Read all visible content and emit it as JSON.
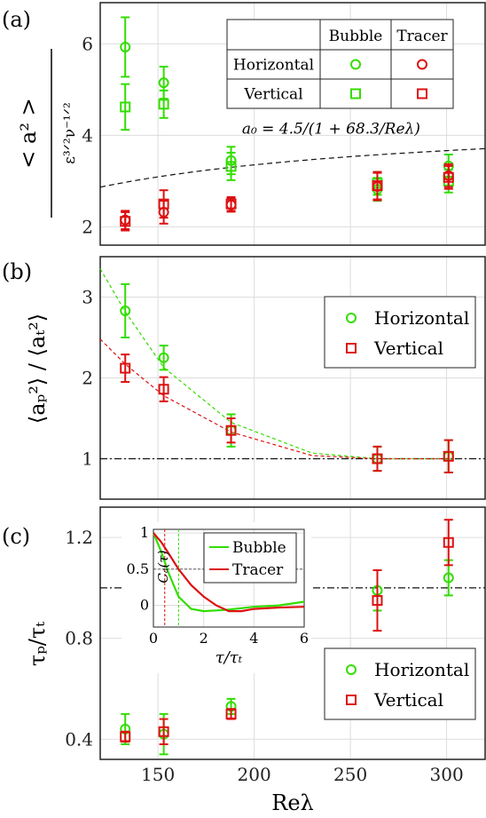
{
  "colors": {
    "bubble": "#33dd00",
    "tracer": "#dd1111",
    "grid": "#dddddd",
    "ref": "#111111"
  },
  "xlabel": "Reλ",
  "xticks": [
    150,
    200,
    250,
    300
  ],
  "chart_data": [
    {
      "panel": "(a)",
      "type": "scatter",
      "xlim": [
        120,
        320
      ],
      "ylim": [
        1.6,
        6.9
      ],
      "yticks": [
        2,
        4,
        6
      ],
      "ylabel_num": "< a² >",
      "ylabel_den": "ε³ᐟ²ν⁻¹ᐟ²",
      "legend_table": {
        "cols": [
          "Bubble",
          "Tracer"
        ],
        "rows": [
          "Horizontal",
          "Vertical"
        ]
      },
      "fit_label": "a₀ = 4.5/(1 + 68.3/Reλ)",
      "fit": {
        "formula": "4.5/(1+68.3/x)",
        "style": "dashed"
      },
      "series": [
        {
          "name": "Bubble Horizontal",
          "marker": "circle",
          "color": "bubble",
          "x": [
            133,
            153,
            188,
            264,
            301
          ],
          "y": [
            5.93,
            5.15,
            3.45,
            2.82,
            3.33
          ],
          "err": [
            0.65,
            0.35,
            0.3,
            0.25,
            0.25
          ]
        },
        {
          "name": "Bubble Vertical",
          "marker": "square",
          "color": "bubble",
          "x": [
            133,
            153,
            188,
            264,
            301
          ],
          "y": [
            4.62,
            4.68,
            3.32,
            2.95,
            3.0
          ],
          "err": [
            0.5,
            0.3,
            0.3,
            0.25,
            0.25
          ]
        },
        {
          "name": "Tracer Horizontal",
          "marker": "circle",
          "color": "tracer",
          "x": [
            133,
            153,
            188,
            264,
            301
          ],
          "y": [
            2.15,
            2.32,
            2.48,
            2.88,
            3.12
          ],
          "err": [
            0.2,
            0.25,
            0.15,
            0.3,
            0.25
          ]
        },
        {
          "name": "Tracer Vertical",
          "marker": "square",
          "color": "tracer",
          "x": [
            133,
            153,
            188,
            264,
            301
          ],
          "y": [
            2.12,
            2.5,
            2.5,
            2.9,
            3.08
          ],
          "err": [
            0.2,
            0.3,
            0.15,
            0.3,
            0.25
          ]
        }
      ]
    },
    {
      "panel": "(b)",
      "type": "scatter",
      "xlim": [
        120,
        320
      ],
      "ylim": [
        0.5,
        3.5
      ],
      "yticks": [
        1,
        2,
        3
      ],
      "ylabel": "⟨aₚ²⟩ / ⟨aₜ²⟩",
      "legend": [
        "Horizontal",
        "Vertical"
      ],
      "refline": 1,
      "series": [
        {
          "name": "Horizontal",
          "marker": "circle",
          "color": "bubble",
          "x": [
            133,
            153,
            188,
            264,
            301
          ],
          "y": [
            2.83,
            2.25,
            1.35,
            1.0,
            1.03
          ],
          "err": [
            0.33,
            0.15,
            0.2,
            0.15,
            0.2
          ]
        },
        {
          "name": "Vertical",
          "marker": "square",
          "color": "tracer",
          "x": [
            133,
            153,
            188,
            264,
            301
          ],
          "y": [
            2.12,
            1.86,
            1.35,
            1.0,
            1.03
          ],
          "err": [
            0.17,
            0.15,
            0.15,
            0.15,
            0.2
          ]
        }
      ],
      "fits": [
        {
          "color": "bubble",
          "x": [
            120,
            133,
            153,
            188,
            230,
            264,
            301
          ],
          "y": [
            3.35,
            2.82,
            2.13,
            1.45,
            1.07,
            1.0,
            1.0
          ]
        },
        {
          "color": "tracer",
          "x": [
            120,
            133,
            153,
            188,
            230,
            264,
            301
          ],
          "y": [
            2.48,
            2.17,
            1.78,
            1.33,
            1.04,
            1.0,
            1.0
          ]
        }
      ]
    },
    {
      "panel": "(c)",
      "type": "scatter",
      "xlim": [
        120,
        320
      ],
      "ylim": [
        0.32,
        1.32
      ],
      "yticks": [
        0.4,
        0.8,
        1.2
      ],
      "ylabel": "τₚ/τₜ",
      "legend": [
        "Horizontal",
        "Vertical"
      ],
      "refline": 1,
      "series": [
        {
          "name": "Horizontal",
          "marker": "circle",
          "color": "bubble",
          "x": [
            133,
            153,
            188,
            264,
            301
          ],
          "y": [
            0.44,
            0.42,
            0.53,
            0.99,
            1.04
          ],
          "err": [
            0.06,
            0.08,
            0.03,
            0.08,
            0.07
          ]
        },
        {
          "name": "Vertical",
          "marker": "square",
          "color": "tracer",
          "x": [
            133,
            153,
            188,
            264,
            301
          ],
          "y": [
            0.41,
            0.43,
            0.5,
            0.95,
            1.18
          ],
          "err": [
            0.02,
            0.05,
            0.02,
            0.12,
            0.09
          ]
        }
      ],
      "inset": {
        "type": "line",
        "xlim": [
          0,
          6
        ],
        "ylim": [
          -0.3,
          1.05
        ],
        "xticks": [
          0,
          2,
          4,
          6
        ],
        "yticks": [
          0,
          0.5,
          1
        ],
        "xlabel": "τ/τₜ",
        "ylabel": "Cₐ(τ)",
        "hline": 0.5,
        "vlines": [
          {
            "x": 0.45,
            "color": "tracer"
          },
          {
            "x": 1.0,
            "color": "bubble"
          }
        ],
        "series": [
          {
            "name": "Bubble",
            "color": "bubble",
            "x": [
              0,
              0.3,
              0.6,
              1.0,
              1.5,
              2.0,
              2.5,
              3.0,
              4.0,
              5.0,
              6.0
            ],
            "y": [
              1.0,
              0.75,
              0.45,
              0.12,
              -0.05,
              -0.08,
              -0.07,
              -0.06,
              -0.02,
              0.0,
              0.05
            ]
          },
          {
            "name": "Tracer",
            "color": "tracer",
            "x": [
              0,
              0.3,
              0.6,
              1.0,
              1.5,
              2.0,
              2.5,
              3.0,
              3.5,
              4.0,
              5.0,
              6.0
            ],
            "y": [
              1.0,
              0.88,
              0.72,
              0.5,
              0.28,
              0.12,
              0.0,
              -0.08,
              -0.08,
              -0.05,
              -0.03,
              -0.02
            ]
          }
        ]
      }
    }
  ]
}
